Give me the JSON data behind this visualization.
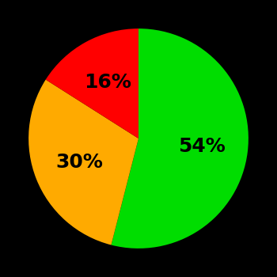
{
  "slices": [
    54,
    30,
    16
  ],
  "colors": [
    "#00dd00",
    "#ffaa00",
    "#ff0000"
  ],
  "labels": [
    "54%",
    "30%",
    "16%"
  ],
  "background_color": "#000000",
  "text_color": "#000000",
  "startangle": 90,
  "counterclock": false,
  "figsize": [
    3.5,
    3.5
  ],
  "dpi": 100,
  "font_size": 18,
  "font_weight": "bold",
  "label_r": 0.58
}
